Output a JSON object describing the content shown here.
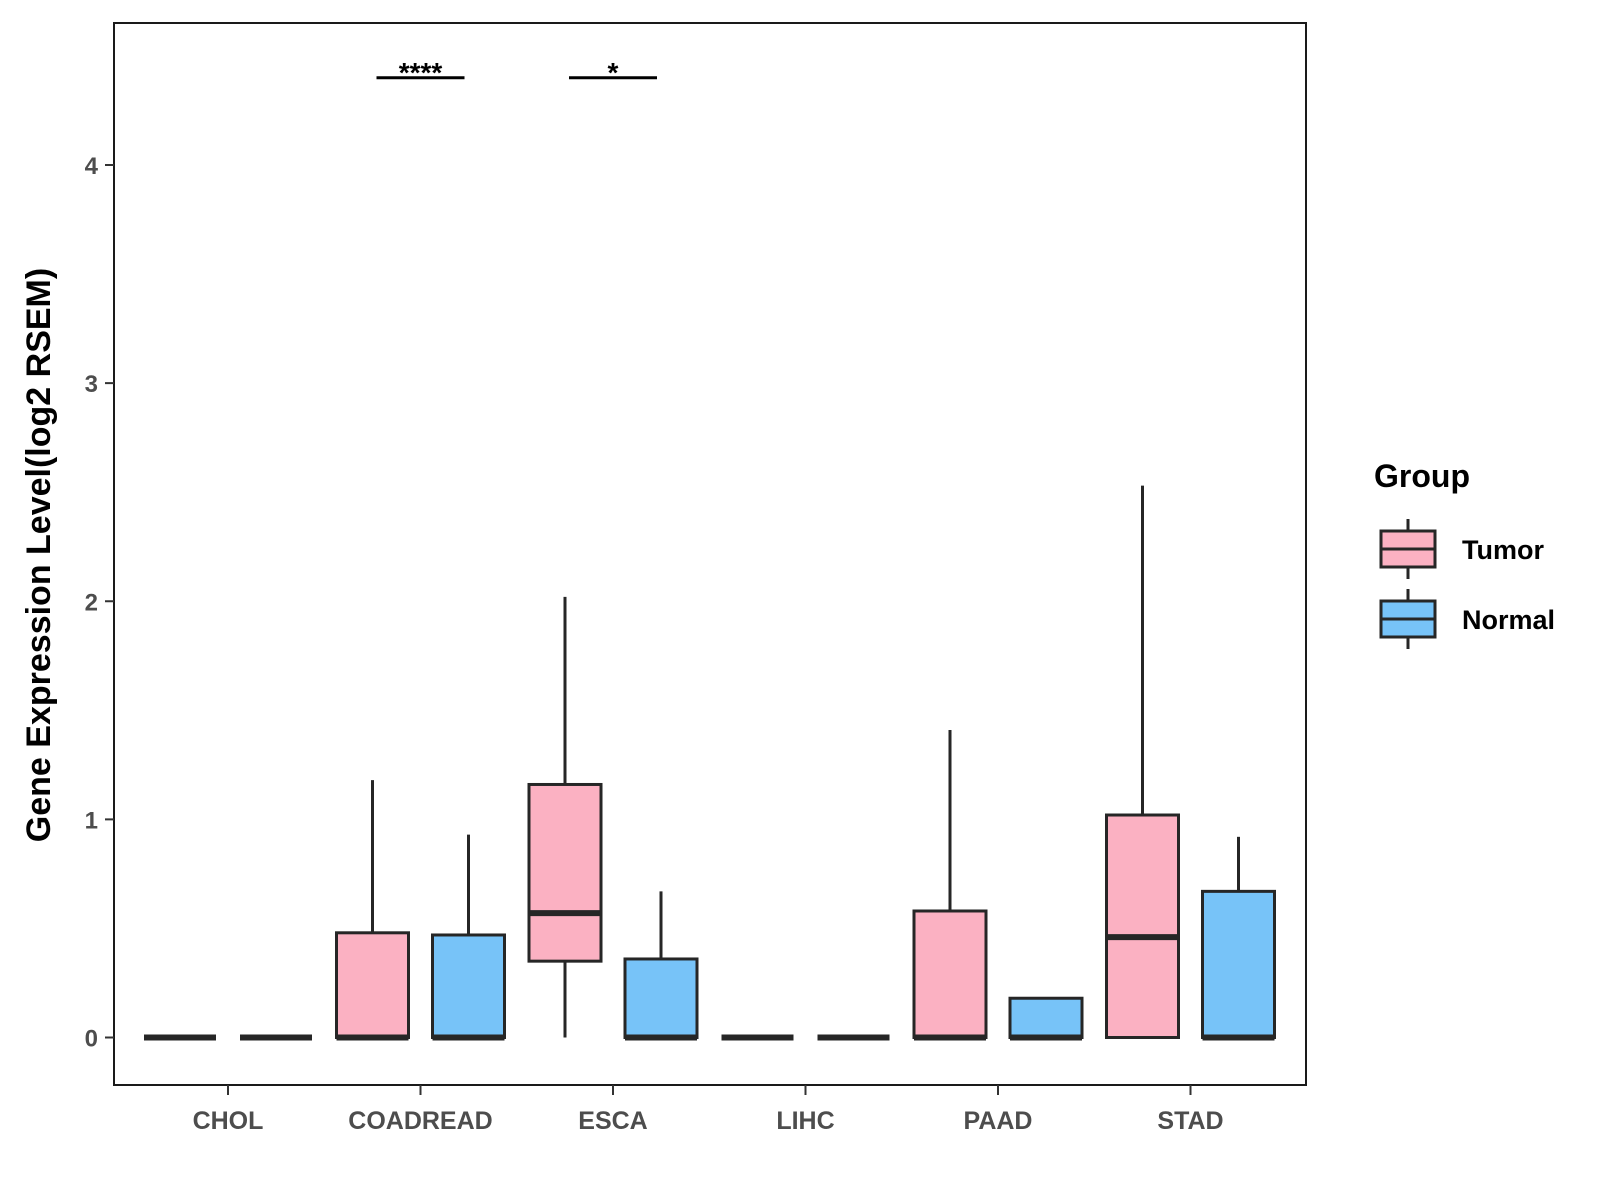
{
  "chart_data": {
    "type": "boxplot",
    "title": "",
    "xlabel": "",
    "ylabel": "Gene Expression Level(log2 RSEM)",
    "ylim": [
      -0.2,
      4.62
    ],
    "yticks": [
      0,
      1,
      2,
      3,
      4
    ],
    "categories": [
      "CHOL",
      "COADREAD",
      "ESCA",
      "LIHC",
      "PAAD",
      "STAD"
    ],
    "legend": {
      "title": "Group",
      "position": "right",
      "entries": [
        {
          "name": "Tumor",
          "color": "#fbb1c2"
        },
        {
          "name": "Normal",
          "color": "#77c3f8"
        }
      ]
    },
    "series": [
      {
        "name": "Tumor",
        "color": "#fbb1c2",
        "boxes": [
          {
            "category": "CHOL",
            "min": 0,
            "q1": 0,
            "median": 0,
            "q3": 0,
            "max": 0
          },
          {
            "category": "COADREAD",
            "min": 0,
            "q1": 0,
            "median": 0,
            "q3": 0.48,
            "max": 1.18
          },
          {
            "category": "ESCA",
            "min": 0,
            "q1": 0.35,
            "median": 0.57,
            "q3": 1.16,
            "max": 2.02
          },
          {
            "category": "LIHC",
            "min": 0,
            "q1": 0,
            "median": 0,
            "q3": 0,
            "max": 0
          },
          {
            "category": "PAAD",
            "min": 0,
            "q1": 0,
            "median": 0,
            "q3": 0.58,
            "max": 1.41
          },
          {
            "category": "STAD",
            "min": 0,
            "q1": 0,
            "median": 0.46,
            "q3": 1.02,
            "max": 2.53
          }
        ]
      },
      {
        "name": "Normal",
        "color": "#77c3f8",
        "boxes": [
          {
            "category": "CHOL",
            "min": 0,
            "q1": 0,
            "median": 0,
            "q3": 0,
            "max": 0
          },
          {
            "category": "COADREAD",
            "min": 0,
            "q1": 0,
            "median": 0,
            "q3": 0.47,
            "max": 0.93
          },
          {
            "category": "ESCA",
            "min": 0,
            "q1": 0,
            "median": 0,
            "q3": 0.36,
            "max": 0.67
          },
          {
            "category": "LIHC",
            "min": 0,
            "q1": 0,
            "median": 0,
            "q3": 0,
            "max": 0
          },
          {
            "category": "PAAD",
            "min": 0,
            "q1": 0,
            "median": 0,
            "q3": 0.18,
            "max": 0.18
          },
          {
            "category": "STAD",
            "min": 0,
            "q1": 0,
            "median": 0,
            "q3": 0.67,
            "max": 0.92
          }
        ]
      }
    ],
    "annotations": [
      {
        "category": "COADREAD",
        "label": "****",
        "y": 4.4
      },
      {
        "category": "ESCA",
        "label": "*",
        "y": 4.4
      }
    ],
    "grid": false
  }
}
